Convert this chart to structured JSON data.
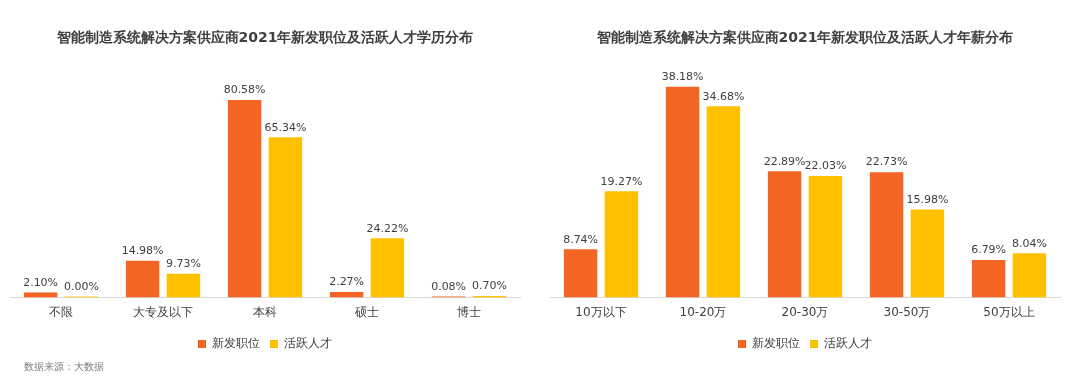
{
  "chart_data": [
    {
      "type": "bar",
      "title": "智能制造系统解决方案供应商2021年新发职位及活跃人才学历分布",
      "categories": [
        "不限",
        "大专及以下",
        "本科",
        "硕士",
        "博士"
      ],
      "series": [
        {
          "name": "新发职位",
          "color": "#f26522",
          "values": [
            2.1,
            14.98,
            80.58,
            2.27,
            0.08
          ],
          "value_labels": [
            "2.10%",
            "14.98%",
            "80.58%",
            "2.27%",
            "0.08%"
          ]
        },
        {
          "name": "活跃人才",
          "color": "#ffc000",
          "values": [
            0,
            9.73,
            65.34,
            24.22,
            0.7
          ],
          "value_labels": [
            "0.00%",
            "9.73%",
            "65.34%",
            "24.22%",
            "0.70%"
          ]
        }
      ],
      "legend": "bottom",
      "grid": false,
      "annotations": [
        "数据来源：大数据"
      ]
    },
    {
      "type": "bar",
      "title": "智能制造系统解决方案供应商2021年新发职位及活跃人才年薪分布",
      "categories": [
        "10万以下",
        "10-20万",
        "20-30万",
        "30-50万",
        "50万以上"
      ],
      "series": [
        {
          "name": "新发职位",
          "color": "#f26522",
          "values": [
            8.74,
            38.18,
            22.89,
            22.73,
            6.79
          ],
          "value_labels": [
            "8.74%",
            "38.18%",
            "22.89%",
            "22.73%",
            "6.79%"
          ]
        },
        {
          "name": "活跃人才",
          "color": "#ffc000",
          "values": [
            19.27,
            34.68,
            22.03,
            15.98,
            8.04
          ],
          "value_labels": [
            "19.27%",
            "34.68%",
            "22.03%",
            "15.98%",
            "8.04%"
          ]
        }
      ],
      "legend": "bottom",
      "grid": false
    }
  ]
}
